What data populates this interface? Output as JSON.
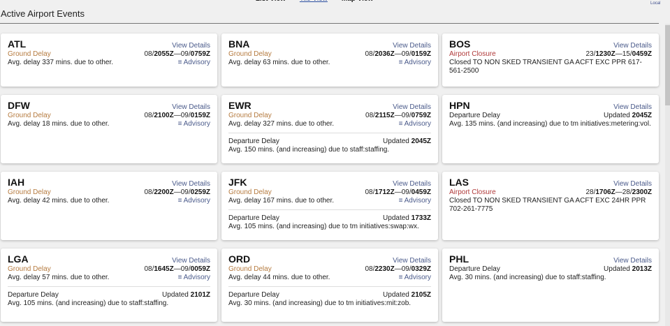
{
  "nav": {
    "views": [
      {
        "label": "List View",
        "active": false
      },
      {
        "label": "Tile View",
        "active": true
      },
      {
        "label": "Map View",
        "active": false
      }
    ],
    "time_mode": "Local"
  },
  "title": "Active Airport Events",
  "view_details_label": "View Details",
  "advisory_label": "Advisory",
  "updated_label": "Updated",
  "colors": {
    "ground": "#b57a3e",
    "closure": "#b03a3a",
    "link": "#4a5a8a"
  },
  "cards": [
    {
      "code": "ATL",
      "events": [
        {
          "kind": "ground",
          "type": "Ground Delay",
          "start_day": "08/",
          "start_time": "2055Z",
          "end_day": "09/",
          "end_time": "0759Z",
          "desc": "Avg. delay 337 mins. due to other.",
          "advisory": true
        }
      ]
    },
    {
      "code": "BNA",
      "events": [
        {
          "kind": "ground",
          "type": "Ground Delay",
          "start_day": "08/",
          "start_time": "2036Z",
          "end_day": "09/",
          "end_time": "0159Z",
          "desc": "Avg. delay 63 mins. due to other.",
          "advisory": true
        }
      ]
    },
    {
      "code": "BOS",
      "events": [
        {
          "kind": "closure",
          "type": "Airport Closure",
          "start_day": "23/",
          "start_time": "1230Z",
          "end_day": "15/",
          "end_time": "0459Z",
          "desc": "Closed TO NON SKED TRANSIENT GA ACFT EXC PPR 617-561-2500",
          "advisory": false
        }
      ]
    },
    {
      "code": "DFW",
      "events": [
        {
          "kind": "ground",
          "type": "Ground Delay",
          "start_day": "08/",
          "start_time": "2100Z",
          "end_day": "09/",
          "end_time": "0159Z",
          "desc": "Avg. delay 18 mins. due to other.",
          "advisory": true
        }
      ]
    },
    {
      "code": "EWR",
      "events": [
        {
          "kind": "ground",
          "type": "Ground Delay",
          "start_day": "08/",
          "start_time": "2115Z",
          "end_day": "09/",
          "end_time": "0759Z",
          "desc": "Avg. delay 327 mins. due to other.",
          "advisory": true
        },
        {
          "kind": "departure",
          "type": "Departure Delay",
          "updated": "2045Z",
          "desc": "Avg. 150 mins. (and increasing) due to staff:staffing."
        }
      ]
    },
    {
      "code": "HPN",
      "events": [
        {
          "kind": "departure",
          "type": "Departure Delay",
          "updated": "2045Z",
          "desc": "Avg. 135 mins. (and increasing) due to tm initiatives:metering:vol."
        }
      ]
    },
    {
      "code": "IAH",
      "events": [
        {
          "kind": "ground",
          "type": "Ground Delay",
          "start_day": "08/",
          "start_time": "2200Z",
          "end_day": "09/",
          "end_time": "0259Z",
          "desc": "Avg. delay 42 mins. due to other.",
          "advisory": true
        }
      ]
    },
    {
      "code": "JFK",
      "events": [
        {
          "kind": "ground",
          "type": "Ground Delay",
          "start_day": "08/",
          "start_time": "1712Z",
          "end_day": "09/",
          "end_time": "0459Z",
          "desc": "Avg. delay 167 mins. due to other.",
          "advisory": true
        },
        {
          "kind": "departure",
          "type": "Departure Delay",
          "updated": "1733Z",
          "desc": "Avg. 105 mins. (and increasing) due to tm initiatives:swap:wx."
        }
      ]
    },
    {
      "code": "LAS",
      "events": [
        {
          "kind": "closure",
          "type": "Airport Closure",
          "start_day": "28/",
          "start_time": "1706Z",
          "end_day": "28/",
          "end_time": "2300Z",
          "desc": "Closed TO NON SKED TRANSIENT GA ACFT EXC 24HR PPR 702-261-7775",
          "advisory": false
        }
      ]
    },
    {
      "code": "LGA",
      "events": [
        {
          "kind": "ground",
          "type": "Ground Delay",
          "start_day": "08/",
          "start_time": "1645Z",
          "end_day": "09/",
          "end_time": "0059Z",
          "desc": "Avg. delay 57 mins. due to other.",
          "advisory": true
        },
        {
          "kind": "departure",
          "type": "Departure Delay",
          "updated": "2101Z",
          "desc": "Avg. 105 mins. (and increasing) due to staff:staffing."
        }
      ]
    },
    {
      "code": "ORD",
      "events": [
        {
          "kind": "ground",
          "type": "Ground Delay",
          "start_day": "08/",
          "start_time": "2230Z",
          "end_day": "09/",
          "end_time": "0329Z",
          "desc": "Avg. delay 44 mins. due to other.",
          "advisory": true
        },
        {
          "kind": "departure",
          "type": "Departure Delay",
          "updated": "2105Z",
          "desc": "Avg. 30 mins. (and increasing) due to tm initiatives:mit:zob."
        }
      ]
    },
    {
      "code": "PHL",
      "events": [
        {
          "kind": "departure",
          "type": "Departure Delay",
          "updated": "2013Z",
          "desc": "Avg. 30 mins. (and increasing) due to staff:staffing."
        }
      ]
    }
  ]
}
